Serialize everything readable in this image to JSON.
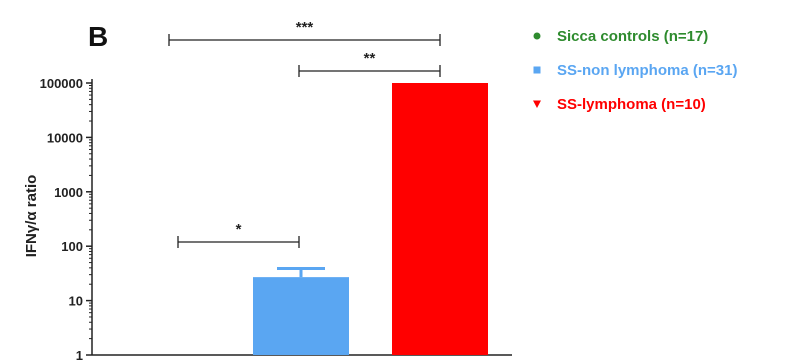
{
  "panel_label": "B",
  "chart_data": {
    "type": "bar",
    "categories": [
      "Sicca controls (n=17)",
      "SS-non lymphoma (n=31)",
      "SS-lymphoma (n=10)"
    ],
    "series": [
      {
        "values": [
          1,
          27,
          100000
        ],
        "errors": [
          0,
          12,
          0
        ],
        "colors": [
          "#2e8b2e",
          "#5aa6f2",
          "#ff0000"
        ]
      }
    ],
    "ylabel": "IFNγ/α ratio",
    "yscale": "log",
    "ylim": [
      1,
      100000
    ],
    "yticks": [
      "1",
      "10",
      "100",
      "1000",
      "10000",
      "100000"
    ],
    "legend": {
      "position": "right",
      "entries": [
        {
          "label": "Sicca controls (n=17)",
          "marker": "●",
          "color": "#2e8b2e"
        },
        {
          "label": "SS-non lymphoma (n=31)",
          "marker": "■",
          "color": "#5aa6f2"
        },
        {
          "label": "SS-lymphoma (n=10)",
          "marker": "▼",
          "color": "#ff0000"
        }
      ]
    },
    "significance": [
      {
        "from": 0,
        "to": 1,
        "label": "*"
      },
      {
        "from": 1,
        "to": 2,
        "label": "**"
      },
      {
        "from": 0,
        "to": 2,
        "label": "***"
      }
    ]
  }
}
